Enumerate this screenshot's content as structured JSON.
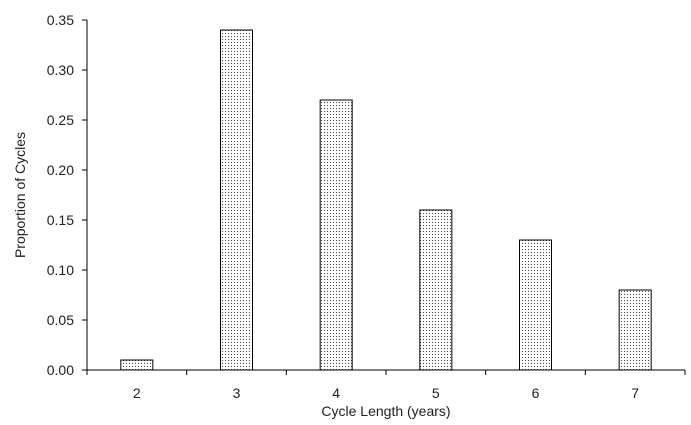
{
  "chart_data": {
    "type": "bar",
    "categories": [
      "2",
      "3",
      "4",
      "5",
      "6",
      "7"
    ],
    "values": [
      0.01,
      0.34,
      0.27,
      0.16,
      0.13,
      0.08
    ],
    "title": "",
    "xlabel": "Cycle Length (years)",
    "ylabel": "Proportion of Cycles",
    "ylim": [
      0,
      0.35
    ],
    "yticks": [
      "0.00",
      "0.05",
      "0.10",
      "0.15",
      "0.20",
      "0.25",
      "0.30",
      "0.35"
    ],
    "grid": false,
    "legend": "none",
    "bar_fill": "dotted",
    "colors": {
      "bar_stroke": "#000000",
      "bar_dot": "#333333",
      "axis": "#000000"
    }
  }
}
